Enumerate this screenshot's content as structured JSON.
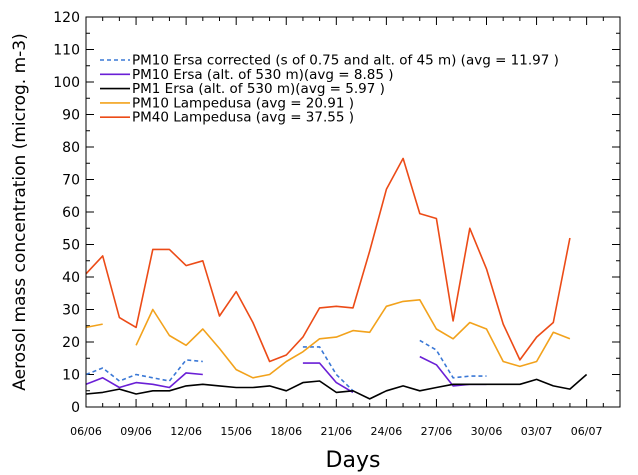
{
  "chart_data": {
    "type": "line",
    "xlabel": "Days",
    "ylabel": "Aerosol mass concentration (microg. m-3)",
    "ylim": [
      0,
      120
    ],
    "yticks": [
      0,
      10,
      20,
      30,
      40,
      50,
      60,
      70,
      80,
      90,
      100,
      110,
      120
    ],
    "xlim": [
      0,
      32
    ],
    "xticks": [
      {
        "x": 0,
        "label": "06/06"
      },
      {
        "x": 3,
        "label": "09/06"
      },
      {
        "x": 6,
        "label": "12/06"
      },
      {
        "x": 9,
        "label": "15/06"
      },
      {
        "x": 12,
        "label": "18/06"
      },
      {
        "x": 15,
        "label": "21/06"
      },
      {
        "x": 18,
        "label": "24/06"
      },
      {
        "x": 21,
        "label": "27/06"
      },
      {
        "x": 24,
        "label": "30/06"
      },
      {
        "x": 27,
        "label": "03/07"
      },
      {
        "x": 30,
        "label": "06/07"
      }
    ],
    "legend_position": "top-left",
    "grid": false,
    "series": [
      {
        "name": "PM10 Ersa corrected (s of 0.75 and alt. of 45 m) (avg = 11.97 )",
        "color": "#3a78d6",
        "dash": "dashed",
        "segments": [
          [
            [
              0,
              10
            ],
            [
              1,
              12
            ],
            [
              2,
              8
            ],
            [
              3,
              10
            ],
            [
              4,
              9
            ],
            [
              5,
              8
            ],
            [
              6,
              14.5
            ],
            [
              7,
              14
            ]
          ],
          [
            [
              13,
              18.5
            ],
            [
              14,
              18.5
            ],
            [
              15,
              10
            ],
            [
              16,
              5
            ]
          ],
          [
            [
              20,
              20.5
            ],
            [
              21,
              17.5
            ],
            [
              22,
              9
            ],
            [
              23,
              9.5
            ],
            [
              24,
              9.5
            ]
          ]
        ]
      },
      {
        "name": "PM10 Ersa (alt. of 530 m)(avg = 8.85 )",
        "color": "#6a1fd6",
        "dash": "solid",
        "segments": [
          [
            [
              0,
              7
            ],
            [
              1,
              9
            ],
            [
              2,
              6
            ],
            [
              3,
              7.5
            ],
            [
              4,
              7
            ],
            [
              5,
              6
            ],
            [
              6,
              10.5
            ],
            [
              7,
              10
            ]
          ],
          [
            [
              13,
              13.5
            ],
            [
              14,
              13.5
            ],
            [
              15,
              7.5
            ],
            [
              16,
              4.5
            ]
          ],
          [
            [
              20,
              15.5
            ],
            [
              21,
              13
            ],
            [
              22,
              6.5
            ],
            [
              23,
              7
            ],
            [
              24,
              7
            ]
          ]
        ]
      },
      {
        "name": "PM1 Ersa (alt. of 530 m)(avg = 5.97 )",
        "color": "#000000",
        "dash": "solid",
        "segments": [
          [
            [
              0,
              4
            ],
            [
              1,
              4.5
            ],
            [
              2,
              5.5
            ],
            [
              3,
              4
            ],
            [
              4,
              5
            ],
            [
              5,
              5
            ],
            [
              6,
              6.5
            ],
            [
              7,
              7
            ],
            [
              8,
              6.5
            ],
            [
              9,
              6
            ],
            [
              10,
              6
            ],
            [
              11,
              6.5
            ],
            [
              12,
              5
            ],
            [
              13,
              7.5
            ],
            [
              14,
              8
            ],
            [
              15,
              4.5
            ],
            [
              16,
              5
            ],
            [
              17,
              2.5
            ],
            [
              18,
              5
            ],
            [
              19,
              6.5
            ],
            [
              20,
              5
            ],
            [
              21,
              6
            ],
            [
              22,
              7
            ],
            [
              23,
              7
            ],
            [
              24,
              7
            ],
            [
              25,
              7
            ],
            [
              26,
              7
            ],
            [
              27,
              8.5
            ],
            [
              28,
              6.5
            ],
            [
              29,
              5.5
            ],
            [
              30,
              10
            ]
          ]
        ]
      },
      {
        "name": "PM10 Lampedusa (avg = 20.91 )",
        "color": "#f2a21c",
        "dash": "solid",
        "segments": [
          [
            [
              0,
              24.5
            ],
            [
              1,
              25.5
            ]
          ],
          [
            [
              3,
              19
            ],
            [
              4,
              30
            ],
            [
              5,
              22
            ],
            [
              6,
              19
            ],
            [
              7,
              24
            ],
            [
              8,
              18
            ],
            [
              9,
              11.5
            ],
            [
              10,
              9
            ],
            [
              11,
              10
            ],
            [
              12,
              14
            ],
            [
              13,
              17
            ],
            [
              14,
              21
            ],
            [
              15,
              21.5
            ],
            [
              16,
              23.5
            ],
            [
              17,
              23
            ],
            [
              18,
              31
            ],
            [
              19,
              32.5
            ],
            [
              20,
              33
            ],
            [
              21,
              24
            ],
            [
              22,
              21
            ],
            [
              23,
              26
            ],
            [
              24,
              24
            ],
            [
              25,
              14
            ],
            [
              26,
              12.5
            ],
            [
              27,
              14
            ],
            [
              28,
              23
            ],
            [
              29,
              21
            ]
          ]
        ]
      },
      {
        "name": "PM40 Lampedusa (avg = 37.55 )",
        "color": "#ec4b17",
        "dash": "solid",
        "segments": [
          [
            [
              0,
              41
            ],
            [
              1,
              46.5
            ],
            [
              2,
              27.5
            ],
            [
              3,
              24.5
            ],
            [
              4,
              48.5
            ],
            [
              5,
              48.5
            ],
            [
              6,
              43.5
            ],
            [
              7,
              45
            ],
            [
              8,
              28
            ],
            [
              9,
              35.5
            ],
            [
              10,
              26
            ],
            [
              11,
              14
            ],
            [
              12,
              16
            ],
            [
              13,
              21.5
            ],
            [
              14,
              30.5
            ],
            [
              15,
              31
            ],
            [
              16,
              30.5
            ],
            [
              17,
              48
            ],
            [
              18,
              67
            ],
            [
              19,
              76.5
            ],
            [
              20,
              59.5
            ],
            [
              21,
              58
            ],
            [
              22,
              26.5
            ],
            [
              23,
              55
            ],
            [
              24,
              42.5
            ],
            [
              25,
              25.5
            ],
            [
              26,
              14.5
            ],
            [
              27,
              21.5
            ],
            [
              28,
              26
            ],
            [
              29,
              52
            ]
          ]
        ]
      }
    ]
  }
}
